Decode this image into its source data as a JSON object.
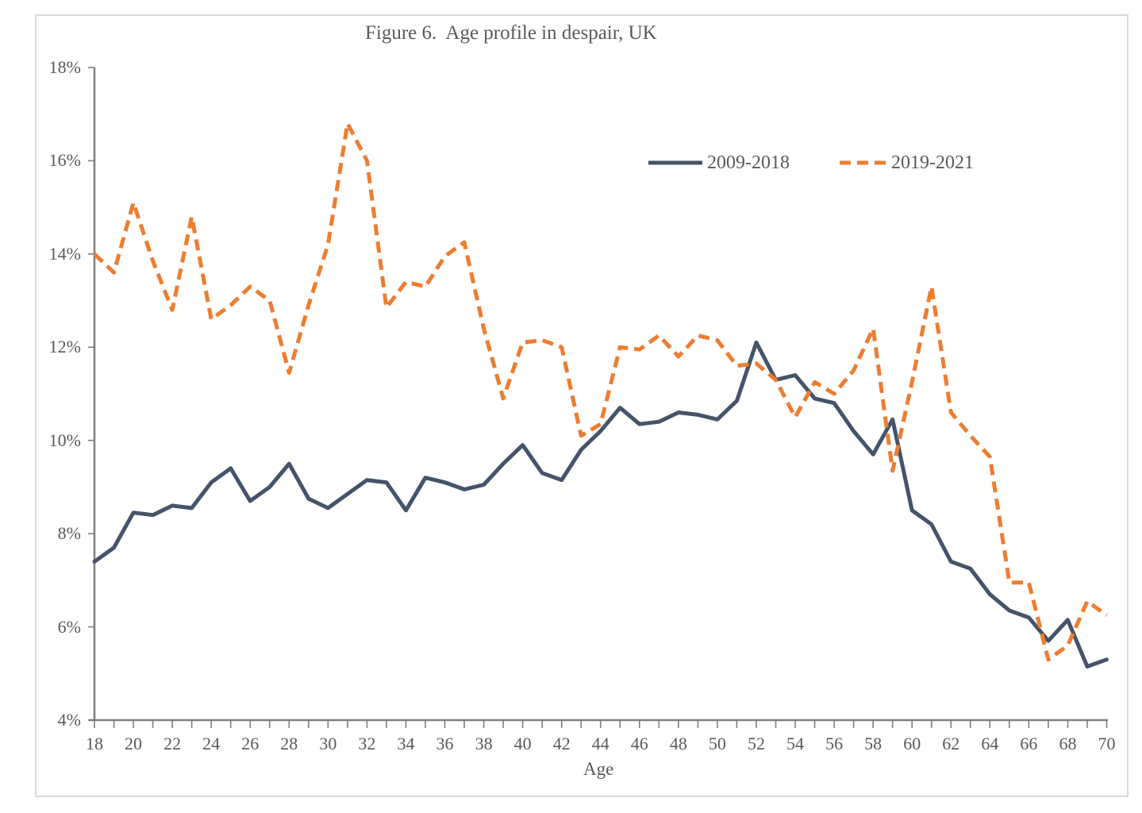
{
  "title": "Figure 6.  Age profile in despair, UK",
  "axes": {
    "x_label": "Age",
    "x_tick_labels": [
      "18",
      "20",
      "22",
      "24",
      "26",
      "28",
      "30",
      "32",
      "34",
      "36",
      "38",
      "40",
      "42",
      "44",
      "46",
      "48",
      "50",
      "52",
      "54",
      "56",
      "58",
      "60",
      "62",
      "64",
      "66",
      "68",
      "70"
    ],
    "y_tick_labels": [
      "18%",
      "16%",
      "14%",
      "12%",
      "10%",
      "8%",
      "6%",
      "4%"
    ]
  },
  "legend": [
    {
      "label": "2009-2018",
      "style": "solid",
      "color": "#44546A"
    },
    {
      "label": "2019-2021",
      "style": "dashed",
      "color": "#ED7D31"
    }
  ],
  "colors": {
    "axis": "#7f7f7f",
    "text": "#595959",
    "frame_border": "#d9d9d9",
    "series_2009_2018": "#44546A",
    "series_2019_2021": "#ED7D31"
  },
  "chart_data": {
    "type": "line",
    "title": "Figure 6.  Age profile in despair, UK",
    "xlabel": "Age",
    "ylabel": "",
    "xlim": [
      18,
      70
    ],
    "ylim": [
      4,
      18
    ],
    "grid": false,
    "legend_position": "inside-top-right",
    "y_unit": "percent",
    "x": [
      18,
      19,
      20,
      21,
      22,
      23,
      24,
      25,
      26,
      27,
      28,
      29,
      30,
      31,
      32,
      33,
      34,
      35,
      36,
      37,
      38,
      39,
      40,
      41,
      42,
      43,
      44,
      45,
      46,
      47,
      48,
      49,
      50,
      51,
      52,
      53,
      54,
      55,
      56,
      57,
      58,
      59,
      60,
      61,
      62,
      63,
      64,
      65,
      66,
      67,
      68,
      69,
      70
    ],
    "series": [
      {
        "name": "2009-2018",
        "style": "solid",
        "color": "#44546A",
        "values": [
          7.4,
          7.7,
          8.45,
          8.4,
          8.6,
          8.55,
          9.1,
          9.4,
          8.7,
          9.0,
          9.5,
          8.75,
          8.55,
          8.85,
          9.15,
          9.1,
          8.5,
          9.2,
          9.1,
          8.95,
          9.05,
          9.5,
          9.9,
          9.3,
          9.15,
          9.8,
          10.2,
          10.7,
          10.35,
          10.4,
          10.6,
          10.55,
          10.45,
          10.85,
          12.1,
          11.3,
          11.4,
          10.9,
          10.8,
          10.2,
          9.7,
          10.45,
          8.5,
          8.2,
          7.4,
          7.25,
          6.7,
          6.35,
          6.2,
          5.7,
          6.15,
          5.15,
          5.3
        ]
      },
      {
        "name": "2019-2021",
        "style": "dashed",
        "color": "#ED7D31",
        "values": [
          14.0,
          13.6,
          15.1,
          13.85,
          12.8,
          14.8,
          12.6,
          12.9,
          13.3,
          13.0,
          11.45,
          12.9,
          14.2,
          16.8,
          16.0,
          12.85,
          13.4,
          13.3,
          13.95,
          14.25,
          12.4,
          10.9,
          12.1,
          12.15,
          12.0,
          10.1,
          10.35,
          12.0,
          11.95,
          12.25,
          11.8,
          12.25,
          12.15,
          11.6,
          11.65,
          11.3,
          10.5,
          11.25,
          11.0,
          11.5,
          12.4,
          9.35,
          11.25,
          13.3,
          10.6,
          10.1,
          9.65,
          6.95,
          6.95,
          5.3,
          5.6,
          6.55,
          6.25
        ]
      }
    ]
  }
}
